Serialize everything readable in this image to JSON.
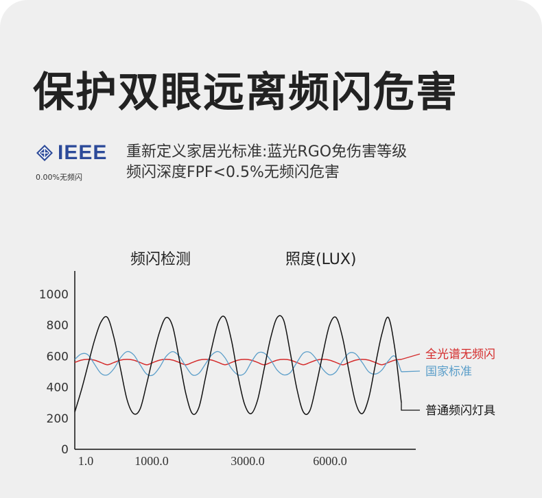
{
  "title": "保护双眼远离频闪危害",
  "ieee": {
    "logo_text": "IEEE",
    "note": "0.00%无频闪"
  },
  "desc": {
    "line1": "重新定义家居光标准:蓝光RGO免伤害等级",
    "line2": "频闪深度FPF<0.5%无频闪危害"
  },
  "chart_titles": {
    "left": "频闪检测",
    "right": "照度(LUX)"
  },
  "colors": {
    "background": "#efefef",
    "full_spectrum": "#d42a2a",
    "national_standard": "#5b9ec9",
    "ordinary": "#111111",
    "ieee_blue": "#2c4a99"
  },
  "chart_data": {
    "type": "line",
    "x_tick_labels": [
      "1.0",
      "1000.0",
      "3000.0",
      "6000.0"
    ],
    "y_ticks": [
      0,
      200,
      400,
      600,
      800,
      1000
    ],
    "ylim": [
      0,
      1150
    ],
    "series": [
      {
        "name": "全光谱无频闪",
        "color": "#d42a2a",
        "values": [
          560,
          575,
          580,
          575,
          560,
          545,
          560,
          575,
          580,
          575,
          560,
          545,
          560,
          575,
          580,
          575,
          560,
          545,
          560,
          575,
          580,
          575,
          560,
          545,
          560,
          575,
          580,
          575,
          560,
          545,
          560,
          575,
          580,
          575,
          560,
          545,
          560,
          575,
          580,
          575,
          560,
          545,
          560,
          575,
          580,
          575,
          560,
          545,
          560,
          575,
          580
        ]
      },
      {
        "name": "国家标准",
        "color": "#5b9ec9",
        "values": [
          580,
          615,
          610,
          550,
          490,
          480,
          520,
          590,
          630,
          610,
          545,
          485,
          480,
          530,
          600,
          630,
          600,
          535,
          480,
          490,
          550,
          610,
          630,
          590,
          520,
          480,
          490,
          560,
          620,
          620,
          575,
          510,
          480,
          495,
          560,
          620,
          625,
          580,
          515,
          480,
          500,
          570,
          620,
          615,
          560,
          500,
          485,
          510,
          570,
          600,
          500
        ]
      },
      {
        "name": "普通频闪灯具",
        "color": "#111111",
        "values": [
          240,
          380,
          540,
          700,
          820,
          850,
          720,
          520,
          320,
          230,
          260,
          420,
          600,
          760,
          850,
          790,
          580,
          360,
          230,
          270,
          460,
          660,
          820,
          850,
          700,
          470,
          290,
          230,
          320,
          520,
          720,
          850,
          830,
          620,
          390,
          240,
          250,
          420,
          620,
          800,
          850,
          720,
          500,
          300,
          230,
          330,
          540,
          740,
          850,
          650,
          300
        ]
      }
    ]
  }
}
